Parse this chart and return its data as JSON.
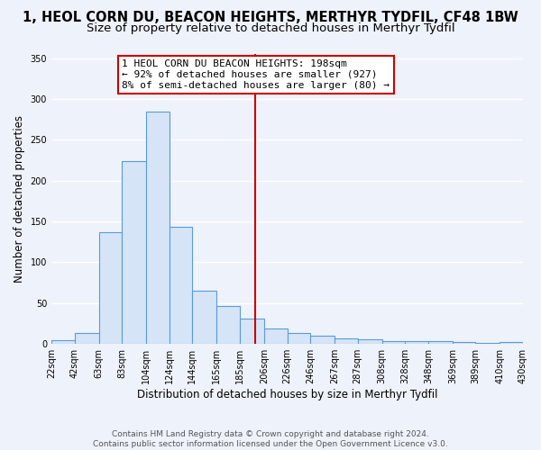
{
  "title": "1, HEOL CORN DU, BEACON HEIGHTS, MERTHYR TYDFIL, CF48 1BW",
  "subtitle": "Size of property relative to detached houses in Merthyr Tydfil",
  "xlabel": "Distribution of detached houses by size in Merthyr Tydfil",
  "ylabel": "Number of detached properties",
  "bin_edges": [
    22,
    42,
    63,
    83,
    104,
    124,
    144,
    165,
    185,
    206,
    226,
    246,
    267,
    287,
    308,
    328,
    348,
    369,
    389,
    410,
    430
  ],
  "bin_heights": [
    5,
    14,
    137,
    224,
    284,
    143,
    65,
    46,
    31,
    19,
    14,
    10,
    7,
    6,
    4,
    3,
    3,
    2,
    1,
    2
  ],
  "bar_facecolor": "#d6e4f7",
  "bar_edgecolor": "#5b9bd5",
  "vline_x": 198,
  "vline_color": "#cc0000",
  "annotation_title": "1 HEOL CORN DU BEACON HEIGHTS: 198sqm",
  "annotation_line1": "← 92% of detached houses are smaller (927)",
  "annotation_line2": "8% of semi-detached houses are larger (80) →",
  "annotation_box_edgecolor": "#cc0000",
  "ylim": [
    0,
    355
  ],
  "xlim": [
    22,
    430
  ],
  "tick_labels": [
    "22sqm",
    "42sqm",
    "63sqm",
    "83sqm",
    "104sqm",
    "124sqm",
    "144sqm",
    "165sqm",
    "185sqm",
    "206sqm",
    "226sqm",
    "246sqm",
    "267sqm",
    "287sqm",
    "308sqm",
    "328sqm",
    "348sqm",
    "369sqm",
    "389sqm",
    "410sqm",
    "430sqm"
  ],
  "yticks": [
    0,
    50,
    100,
    150,
    200,
    250,
    300,
    350
  ],
  "footer_line1": "Contains HM Land Registry data © Crown copyright and database right 2024.",
  "footer_line2": "Contains public sector information licensed under the Open Government Licence v3.0.",
  "background_color": "#eef2fa",
  "grid_color": "#ffffff",
  "title_fontsize": 10.5,
  "subtitle_fontsize": 9.5,
  "axis_label_fontsize": 8.5,
  "tick_fontsize": 7,
  "footer_fontsize": 6.5,
  "ann_x_data": 83,
  "ann_fontsize": 8
}
